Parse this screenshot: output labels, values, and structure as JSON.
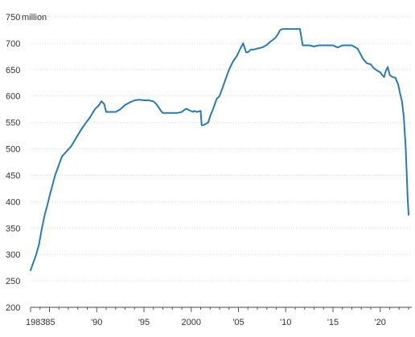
{
  "chart_data": {
    "type": "line",
    "title": "",
    "xlabel": "",
    "ylabel": "",
    "y_unit_label": "million",
    "xlim": [
      1983,
      2023
    ],
    "ylim": [
      200,
      750
    ],
    "grid": true,
    "legend": "none",
    "y_ticks": [
      {
        "value": 200,
        "label": "200"
      },
      {
        "value": 250,
        "label": "250"
      },
      {
        "value": 300,
        "label": "300"
      },
      {
        "value": 350,
        "label": "350"
      },
      {
        "value": 400,
        "label": "400"
      },
      {
        "value": 450,
        "label": "450"
      },
      {
        "value": 500,
        "label": "500"
      },
      {
        "value": 550,
        "label": "550"
      },
      {
        "value": 600,
        "label": "600"
      },
      {
        "value": 650,
        "label": "650"
      },
      {
        "value": 700,
        "label": "700"
      },
      {
        "value": 750,
        "label": "750"
      }
    ],
    "x_ticks": [
      {
        "value": 1983,
        "label": "1983"
      },
      {
        "value": 1985,
        "label": "'85"
      },
      {
        "value": 1990,
        "label": "'90"
      },
      {
        "value": 1995,
        "label": "'95"
      },
      {
        "value": 2000,
        "label": "2000"
      },
      {
        "value": 2005,
        "label": "'05"
      },
      {
        "value": 2010,
        "label": "'10"
      },
      {
        "value": 2015,
        "label": "'15"
      },
      {
        "value": 2020,
        "label": "'20"
      }
    ],
    "series": [
      {
        "color": "#2a7ab0",
        "x": [
          1983.0,
          1983.3,
          1983.6,
          1983.9,
          1984.2,
          1984.5,
          1984.8,
          1985.0,
          1985.3,
          1985.6,
          1985.9,
          1986.3,
          1986.8,
          1987.3,
          1987.8,
          1988.3,
          1988.8,
          1989.3,
          1989.8,
          1990.2,
          1990.5,
          1990.8,
          1991.0,
          1991.3,
          1992.0,
          1992.5,
          1993.0,
          1993.5,
          1994.0,
          1994.5,
          1995.0,
          1995.5,
          1996.0,
          1996.3,
          1996.5,
          1996.8,
          1997.0,
          1997.5,
          1998.0,
          1998.5,
          1999.0,
          1999.3,
          1999.5,
          1999.8,
          2000.2,
          2000.3,
          2000.6,
          2001.0,
          2001.1,
          2001.3,
          2001.5,
          2001.8,
          2002.0,
          2002.3,
          2002.7,
          2003.0,
          2003.3,
          2003.6,
          2004.0,
          2004.4,
          2004.8,
          2005.2,
          2005.5,
          2005.8,
          2006.0,
          2006.3,
          2006.6,
          2007.0,
          2007.5,
          2008.0,
          2008.3,
          2008.6,
          2008.9,
          2009.2,
          2009.4,
          2009.7,
          2010.0,
          2010.5,
          2011.0,
          2011.5,
          2011.8,
          2012.0,
          2012.5,
          2013.0,
          2013.5,
          2014.0,
          2014.5,
          2015.0,
          2015.5,
          2016.0,
          2016.5,
          2017.0,
          2017.3,
          2017.6,
          2017.9,
          2018.2,
          2018.6,
          2019.0,
          2019.3,
          2019.7,
          2020.0,
          2020.2,
          2020.4,
          2020.6,
          2020.8,
          2021.0,
          2021.3,
          2021.6,
          2021.9,
          2022.1,
          2022.3,
          2022.5,
          2022.7,
          2022.9,
          2023.0
        ],
        "y": [
          270,
          285,
          300,
          320,
          350,
          375,
          395,
          410,
          430,
          450,
          465,
          485,
          495,
          505,
          520,
          535,
          548,
          560,
          575,
          582,
          590,
          585,
          570,
          570,
          570,
          575,
          583,
          588,
          592,
          593,
          592,
          592,
          590,
          585,
          580,
          572,
          568,
          568,
          568,
          568,
          570,
          574,
          576,
          573,
          570,
          572,
          570,
          572,
          545,
          545,
          547,
          550,
          562,
          575,
          595,
          600,
          615,
          630,
          650,
          665,
          675,
          690,
          700,
          683,
          683,
          688,
          688,
          690,
          692,
          697,
          702,
          706,
          710,
          718,
          725,
          727,
          727,
          727,
          727,
          727,
          696,
          696,
          696,
          694,
          696,
          696,
          696,
          696,
          692,
          696,
          696,
          696,
          693,
          690,
          680,
          670,
          662,
          660,
          653,
          648,
          645,
          640,
          636,
          648,
          655,
          640,
          636,
          635,
          622,
          605,
          590,
          560,
          500,
          410,
          375
        ]
      }
    ]
  }
}
